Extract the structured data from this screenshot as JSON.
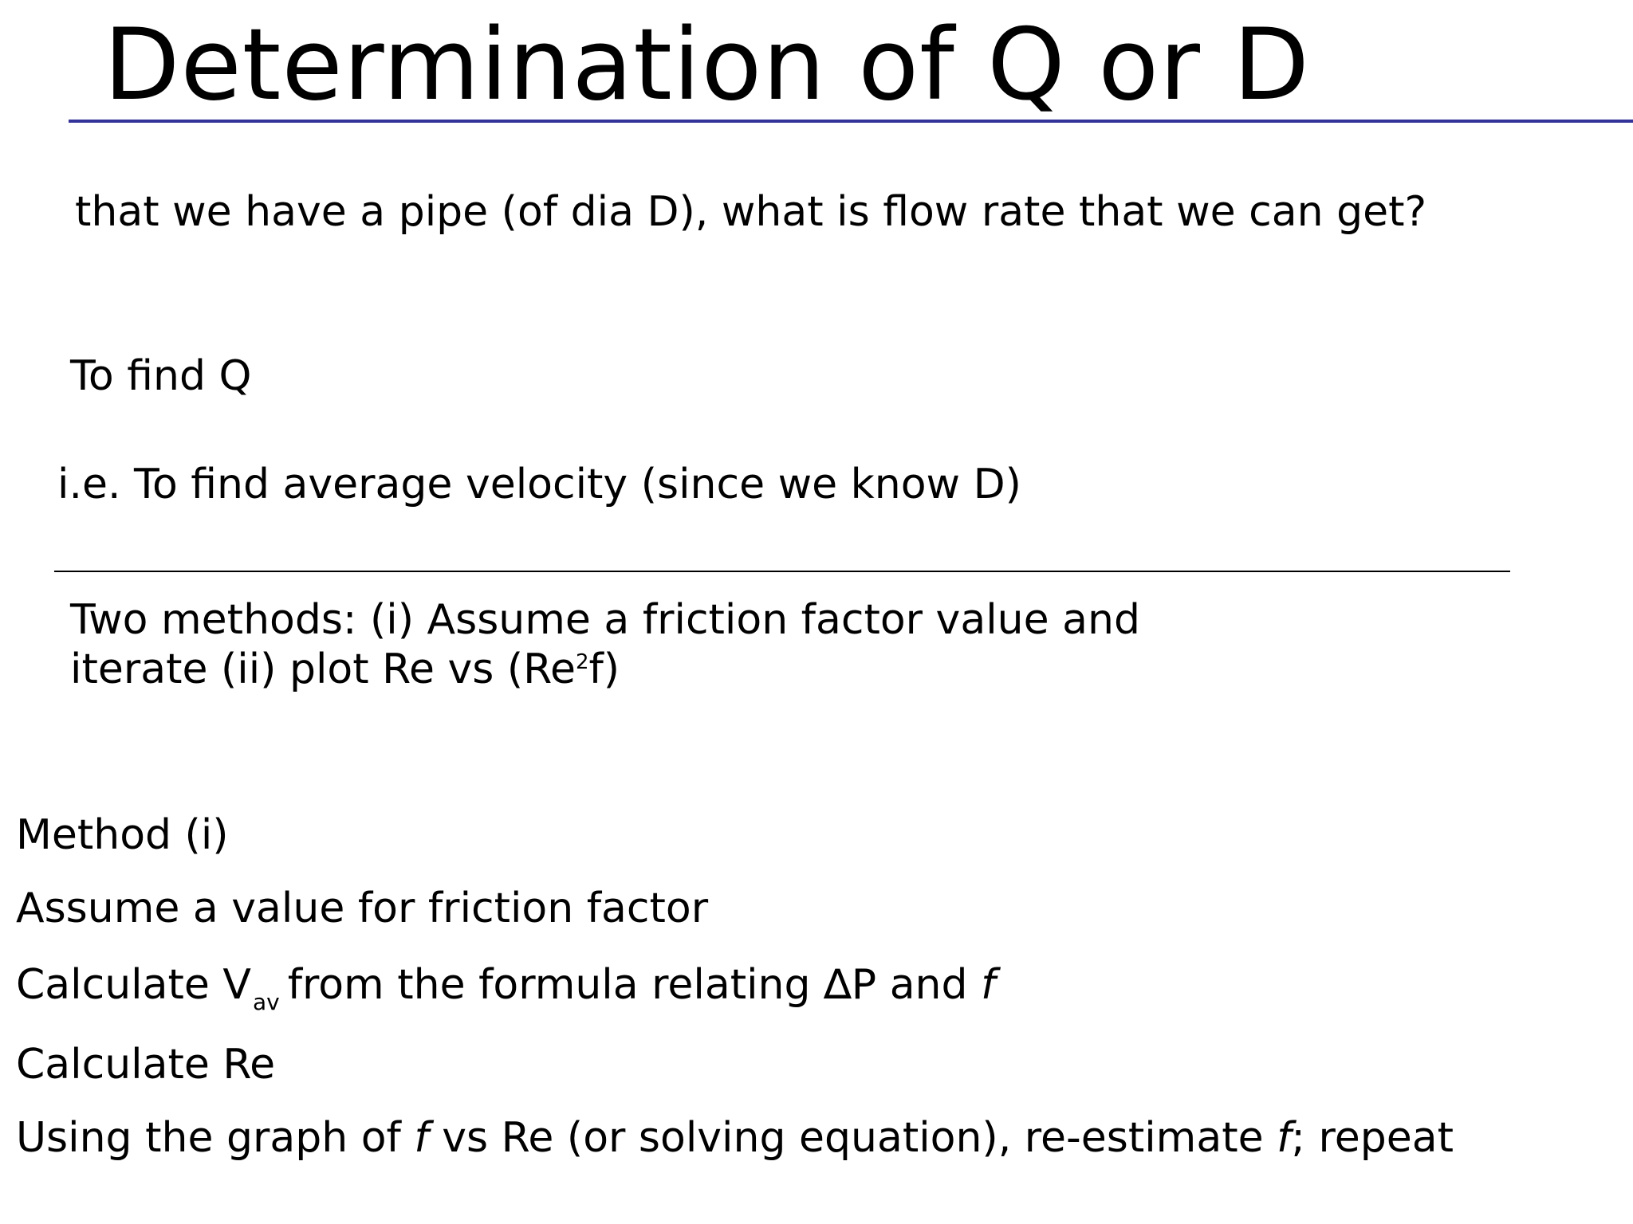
{
  "slide": {
    "title": "Determination of Q or D",
    "colors": {
      "title_rule": "#333399",
      "text": "#000000",
      "background": "#ffffff"
    }
  },
  "intro": {
    "question": "that we have a pipe (of dia D), what is flow rate that we can get?",
    "to_find": "To find Q",
    "ie_line": "i.e. To find average velocity (since we know D)"
  },
  "methods": {
    "line1": "Two methods: (i) Assume a friction factor value and",
    "line2_a": "iterate (ii) plot Re vs (Re",
    "line2_sup": "2",
    "line2_b": "f)"
  },
  "method_i": {
    "heading": "Method (i)",
    "step1": "Assume a value for friction factor",
    "step2": {
      "prefix": "Calculate V",
      "sub": "av",
      "middle": "from the formula relating ∆P and ",
      "symbol": "f"
    },
    "step3": "Calculate Re",
    "step4": {
      "a": "Using the graph of ",
      "f1": "f",
      "b": " vs Re (or solving equation), re-estimate ",
      "f2": "f",
      "c": "; repeat"
    }
  }
}
